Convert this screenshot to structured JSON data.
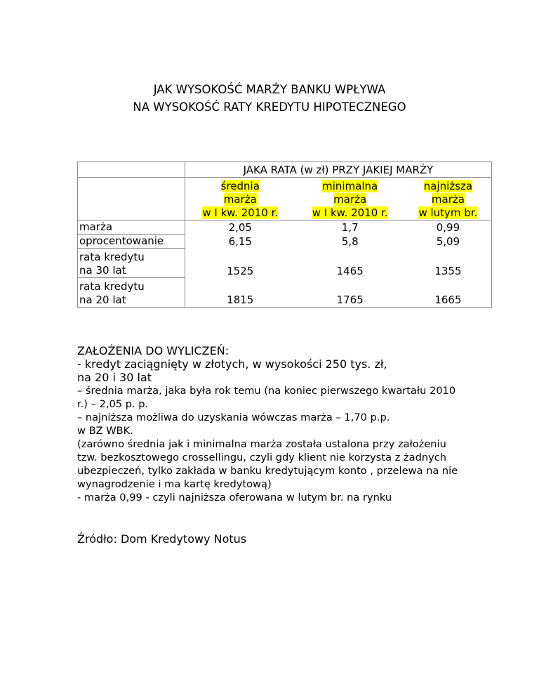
{
  "title": {
    "line1": "JAK WYSOKOŚĆ MARŻY BANKU WPŁYWA",
    "line2": "NA WYSOKOŚĆ RATY KREDYTU HIPOTECZNEGO"
  },
  "table": {
    "caption": "JAKA RATA (w zł) PRZY JAKIEJ MARŻY",
    "columns": [
      [
        "średnia",
        "marża",
        "w I kw. 2010 r."
      ],
      [
        "minimalna",
        "marża",
        "w I kw. 2010 r."
      ],
      [
        "najniższa",
        "marża",
        "w lutym br."
      ]
    ],
    "rows": [
      {
        "label": [
          "marża"
        ],
        "values": [
          "2,05",
          "1,7",
          "0,99"
        ]
      },
      {
        "label": [
          "oprocentowanie"
        ],
        "values": [
          "6,15",
          "5,8",
          "5,09"
        ]
      },
      {
        "label": [
          "rata kredytu",
          "na 30 lat"
        ],
        "values": [
          "1525",
          "1465",
          "1355"
        ]
      },
      {
        "label": [
          "rata kredytu",
          "na 20 lat"
        ],
        "values": [
          "1815",
          "1765",
          "1665"
        ]
      }
    ],
    "highlight_color": "#ffff00"
  },
  "notes": {
    "heading": "ZAŁOŻENIA DO WYLICZEŃ:",
    "lines_big": [
      "- kredyt zaciągnięty w złotych, w wysokości 250 tys. zł,",
      "na 20 i 30 lat"
    ],
    "lines": [
      "– średnia marża, jaka była rok temu (na koniec pierwszego kwartału 2010",
      "r.) – 2,05 p. p.",
      "– najniższa możliwa do uzyskania wówczas marża – 1,70 p.p.",
      "w BZ WBK.",
      "(zarówno średnia jak i minimalna marża została ustalona przy założeniu",
      "tzw. bezkosztowego crossellingu, czyli gdy klient nie korzysta z żadnych",
      "ubezpieczeń, tylko zakłada w banku kredytującym konto , przelewa na nie",
      "wynagrodzenie i ma kartę kredytową)",
      "- marża 0,99 - czyli najniższa oferowana w lutym br. na rynku"
    ]
  },
  "source": "Źródło: Dom Kredytowy Notus"
}
